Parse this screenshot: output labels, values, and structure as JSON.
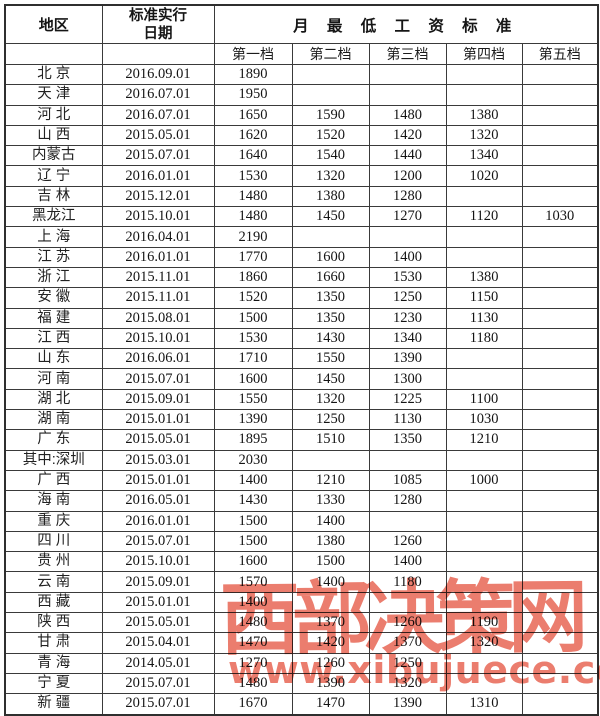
{
  "page": {
    "background": "#ffffff",
    "border_color": "#3a3a3a",
    "text_color": "#191919"
  },
  "table": {
    "header": {
      "region": "地区",
      "date_line1": "标准实行",
      "date_line2": "日期",
      "wage_group": "月 最 低 工 资 标 准",
      "tiers": [
        "第一档",
        "第二档",
        "第三档",
        "第四档",
        "第五档"
      ]
    }
  },
  "watermark": {
    "text": "西部决策网",
    "url": "www.xibujuece.com",
    "color": "#e7604e"
  },
  "chart_data": {
    "type": "table",
    "title": "月最低工资标准",
    "columns": [
      "地区",
      "标准实行日期",
      "第一档",
      "第二档",
      "第三档",
      "第四档",
      "第五档"
    ],
    "rows": [
      [
        "北 京",
        "2016.09.01",
        "1890",
        "",
        "",
        "",
        ""
      ],
      [
        "天 津",
        "2016.07.01",
        "1950",
        "",
        "",
        "",
        ""
      ],
      [
        "河 北",
        "2016.07.01",
        "1650",
        "1590",
        "1480",
        "1380",
        ""
      ],
      [
        "山 西",
        "2015.05.01",
        "1620",
        "1520",
        "1420",
        "1320",
        ""
      ],
      [
        "内蒙古",
        "2015.07.01",
        "1640",
        "1540",
        "1440",
        "1340",
        ""
      ],
      [
        "辽 宁",
        "2016.01.01",
        "1530",
        "1320",
        "1200",
        "1020",
        ""
      ],
      [
        "吉 林",
        "2015.12.01",
        "1480",
        "1380",
        "1280",
        "",
        ""
      ],
      [
        "黑龙江",
        "2015.10.01",
        "1480",
        "1450",
        "1270",
        "1120",
        "1030"
      ],
      [
        "上 海",
        "2016.04.01",
        "2190",
        "",
        "",
        "",
        ""
      ],
      [
        "江 苏",
        "2016.01.01",
        "1770",
        "1600",
        "1400",
        "",
        ""
      ],
      [
        "浙 江",
        "2015.11.01",
        "1860",
        "1660",
        "1530",
        "1380",
        ""
      ],
      [
        "安 徽",
        "2015.11.01",
        "1520",
        "1350",
        "1250",
        "1150",
        ""
      ],
      [
        "福 建",
        "2015.08.01",
        "1500",
        "1350",
        "1230",
        "1130",
        ""
      ],
      [
        "江 西",
        "2015.10.01",
        "1530",
        "1430",
        "1340",
        "1180",
        ""
      ],
      [
        "山 东",
        "2016.06.01",
        "1710",
        "1550",
        "1390",
        "",
        ""
      ],
      [
        "河 南",
        "2015.07.01",
        "1600",
        "1450",
        "1300",
        "",
        ""
      ],
      [
        "湖 北",
        "2015.09.01",
        "1550",
        "1320",
        "1225",
        "1100",
        ""
      ],
      [
        "湖 南",
        "2015.01.01",
        "1390",
        "1250",
        "1130",
        "1030",
        ""
      ],
      [
        "广 东",
        "2015.05.01",
        "1895",
        "1510",
        "1350",
        "1210",
        ""
      ],
      [
        "其中:深圳",
        "2015.03.01",
        "2030",
        "",
        "",
        "",
        ""
      ],
      [
        "广 西",
        "2015.01.01",
        "1400",
        "1210",
        "1085",
        "1000",
        ""
      ],
      [
        "海 南",
        "2016.05.01",
        "1430",
        "1330",
        "1280",
        "",
        ""
      ],
      [
        "重 庆",
        "2016.01.01",
        "1500",
        "1400",
        "",
        "",
        ""
      ],
      [
        "四 川",
        "2015.07.01",
        "1500",
        "1380",
        "1260",
        "",
        ""
      ],
      [
        "贵 州",
        "2015.10.01",
        "1600",
        "1500",
        "1400",
        "",
        ""
      ],
      [
        "云 南",
        "2015.09.01",
        "1570",
        "1400",
        "1180",
        "",
        ""
      ],
      [
        "西 藏",
        "2015.01.01",
        "1400",
        "",
        "",
        "",
        ""
      ],
      [
        "陕 西",
        "2015.05.01",
        "1480",
        "1370",
        "1260",
        "1190",
        ""
      ],
      [
        "甘 肃",
        "2015.04.01",
        "1470",
        "1420",
        "1370",
        "1320",
        ""
      ],
      [
        "青 海",
        "2014.05.01",
        "1270",
        "1260",
        "1250",
        "",
        ""
      ],
      [
        "宁 夏",
        "2015.07.01",
        "1480",
        "1390",
        "1320",
        "",
        ""
      ],
      [
        "新 疆",
        "2015.07.01",
        "1670",
        "1470",
        "1390",
        "1310",
        ""
      ]
    ]
  }
}
